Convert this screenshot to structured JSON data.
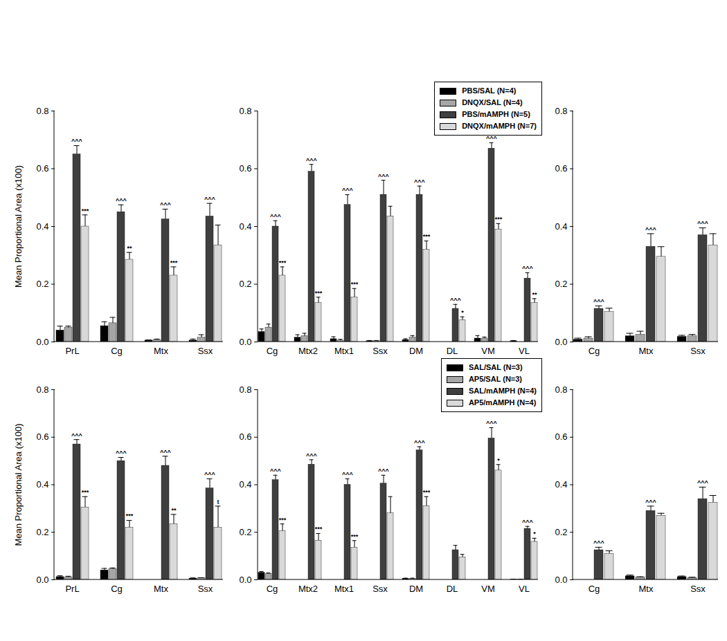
{
  "chart_data": [
    {
      "type": "bar",
      "y_label": "Mean Proportional Area (x100)",
      "categories": [
        "PrL",
        "Cg",
        "Mtx",
        "Ssx"
      ],
      "ylim": [
        0,
        0.8
      ],
      "yticks": [
        {
          "value": 0,
          "label": "0.0"
        },
        0.2,
        0.4,
        0.6,
        0.8
      ],
      "series": [
        {
          "name": "PBS/SAL (N=4)",
          "color": "#000000",
          "values": [
            0.04,
            0.055,
            0.005,
            0.005
          ],
          "errors": [
            0.015,
            0.015,
            0.002,
            0.005
          ],
          "annotations": [
            null,
            null,
            null,
            null
          ]
        },
        {
          "name": "DNQX/SAL (N=4)",
          "color": "#a6a6a6",
          "values": [
            0.05,
            0.065,
            0.007,
            0.015
          ],
          "errors": [
            0.005,
            0.02,
            0.003,
            0.01
          ],
          "annotations": [
            null,
            null,
            null,
            null
          ]
        },
        {
          "name": "PBS/mAMPH (N=5)",
          "color": "#3f3f3f",
          "values": [
            0.65,
            0.45,
            0.425,
            0.435
          ],
          "errors": [
            0.03,
            0.025,
            0.035,
            0.045
          ],
          "annotations": [
            "^^^",
            "^^^",
            "^^^",
            "^^^"
          ]
        },
        {
          "name": "DNQX/mAMPH (N=7)",
          "color": "#d9d9d9",
          "values": [
            0.4,
            0.285,
            0.23,
            0.335
          ],
          "errors": [
            0.04,
            0.025,
            0.03,
            0.07
          ],
          "annotations": [
            "***",
            "**",
            "***",
            null
          ]
        }
      ]
    },
    {
      "type": "bar",
      "legend": "top-right",
      "categories": [
        "Cg",
        "Mtx2",
        "Mtx1",
        "Ssx",
        "DM",
        "DL",
        "VM",
        "VL"
      ],
      "ylim": [
        0,
        0.8
      ],
      "yticks": [
        {
          "value": 0,
          "label": "0.0"
        },
        0.2,
        0.4,
        0.6,
        0.8
      ],
      "series": [
        {
          "name": "PBS/SAL (N=4)",
          "color": "#000000",
          "values": [
            0.035,
            0.015,
            0.01,
            0.003,
            0.007,
            0,
            0.012,
            0.003
          ],
          "errors": [
            0.01,
            0.01,
            0.008,
            0.002,
            0.004,
            0,
            0.01,
            0.002
          ],
          "annotations": [
            null,
            null,
            null,
            null,
            null,
            null,
            null,
            null
          ]
        },
        {
          "name": "DNQX/SAL (N=4)",
          "color": "#a6a6a6",
          "values": [
            0.05,
            0.02,
            0.005,
            0.003,
            0.015,
            0,
            0.012,
            0
          ],
          "errors": [
            0.012,
            0.01,
            0.004,
            0.002,
            0.007,
            0,
            0.005,
            0
          ],
          "annotations": [
            null,
            null,
            null,
            null,
            null,
            null,
            null,
            null
          ]
        },
        {
          "name": "PBS/mAMPH (N=5)",
          "color": "#3f3f3f",
          "values": [
            0.4,
            0.59,
            0.475,
            0.51,
            0.51,
            0.115,
            0.67,
            0.22
          ],
          "errors": [
            0.02,
            0.025,
            0.035,
            0.05,
            0.03,
            0.015,
            0.02,
            0.02
          ],
          "annotations": [
            "^^^",
            "^^^",
            "^^^",
            "^^^",
            "^^^",
            "^^^",
            "^^^",
            "^^^"
          ]
        },
        {
          "name": "DNQX/mAMPH (N=7)",
          "color": "#d9d9d9",
          "values": [
            0.23,
            0.135,
            0.155,
            0.435,
            0.32,
            0.075,
            0.39,
            0.135
          ],
          "errors": [
            0.03,
            0.02,
            0.03,
            0.035,
            0.03,
            0.012,
            0.02,
            0.015
          ],
          "annotations": [
            "***",
            "***",
            "***",
            null,
            "***",
            "*",
            "***",
            "**"
          ]
        }
      ]
    },
    {
      "type": "bar",
      "categories": [
        "Cg",
        "Mtx",
        "Ssx"
      ],
      "ylim": [
        0,
        0.8
      ],
      "yticks": [
        {
          "value": 0,
          "label": "0.0"
        },
        0.2,
        0.4,
        0.6,
        0.8
      ],
      "series": [
        {
          "name": "PBS/SAL (N=4)",
          "color": "#000000",
          "values": [
            0.008,
            0.02,
            0.018
          ],
          "errors": [
            0.005,
            0.01,
            0.005
          ],
          "annotations": [
            null,
            null,
            null
          ]
        },
        {
          "name": "DNQX/SAL (N=4)",
          "color": "#a6a6a6",
          "values": [
            0.012,
            0.025,
            0.02
          ],
          "errors": [
            0.006,
            0.012,
            0.006
          ],
          "annotations": [
            null,
            null,
            null
          ]
        },
        {
          "name": "PBS/mAMPH (N=5)",
          "color": "#3f3f3f",
          "values": [
            0.115,
            0.33,
            0.37
          ],
          "errors": [
            0.01,
            0.045,
            0.025
          ],
          "annotations": [
            "^^^",
            "^^^",
            "^^^"
          ]
        },
        {
          "name": "DNQX/mAMPH (N=7)",
          "color": "#d9d9d9",
          "values": [
            0.105,
            0.295,
            0.335
          ],
          "errors": [
            0.012,
            0.035,
            0.04
          ],
          "annotations": [
            null,
            null,
            null
          ]
        }
      ]
    },
    {
      "type": "bar",
      "y_label": "Mean Proportional Area (x100)",
      "categories": [
        "PrL",
        "Cg",
        "Mtx",
        "Ssx"
      ],
      "ylim": [
        0,
        0.8
      ],
      "yticks": [
        {
          "value": 0,
          "label": "0.0"
        },
        0.2,
        0.4,
        0.6,
        0.8
      ],
      "series": [
        {
          "name": "SAL/SAL (N=3)",
          "color": "#000000",
          "values": [
            0.012,
            0.04,
            0,
            0.005
          ],
          "errors": [
            0.005,
            0.008,
            0,
            0.003
          ],
          "annotations": [
            null,
            null,
            null,
            null
          ]
        },
        {
          "name": "AP5/SAL (N=3)",
          "color": "#a6a6a6",
          "values": [
            0.01,
            0.045,
            0,
            0.007
          ],
          "errors": [
            0.005,
            0.005,
            0,
            0.002
          ],
          "annotations": [
            null,
            null,
            null,
            null
          ]
        },
        {
          "name": "SAL/mAMPH (N=4)",
          "color": "#3f3f3f",
          "values": [
            0.57,
            0.5,
            0.48,
            0.385
          ],
          "errors": [
            0.02,
            0.015,
            0.04,
            0.04
          ],
          "annotations": [
            "^^^",
            "^^^",
            "^^^",
            "^^^"
          ]
        },
        {
          "name": "AP5/mAMPH (N=4)",
          "color": "#d9d9d9",
          "values": [
            0.305,
            0.22,
            0.235,
            0.22
          ],
          "errors": [
            0.045,
            0.03,
            0.04,
            0.09
          ],
          "annotations": [
            "***",
            "***",
            "**",
            "t"
          ]
        }
      ]
    },
    {
      "type": "bar",
      "legend": "top-right",
      "categories": [
        "Cg",
        "Mtx2",
        "Mtx1",
        "Ssx",
        "DM",
        "DL",
        "VM",
        "VL"
      ],
      "ylim": [
        0,
        0.8
      ],
      "yticks": [
        {
          "value": 0,
          "label": "0.0"
        },
        0.2,
        0.4,
        0.6,
        0.8
      ],
      "series": [
        {
          "name": "SAL/SAL (N=3)",
          "color": "#000000",
          "values": [
            0.03,
            0,
            0,
            0,
            0.005,
            0,
            0,
            0.002
          ],
          "errors": [
            0.005,
            0,
            0,
            0,
            0.002,
            0,
            0,
            0.001
          ],
          "annotations": [
            null,
            null,
            null,
            null,
            null,
            null,
            null,
            null
          ]
        },
        {
          "name": "AP5/SAL (N=3)",
          "color": "#a6a6a6",
          "values": [
            0.025,
            0,
            0,
            0,
            0.005,
            0,
            0,
            0.002
          ],
          "errors": [
            0.004,
            0,
            0,
            0,
            0.002,
            0,
            0,
            0.001
          ],
          "annotations": [
            null,
            null,
            null,
            null,
            null,
            null,
            null,
            null
          ]
        },
        {
          "name": "SAL/mAMPH (N=4)",
          "color": "#3f3f3f",
          "values": [
            0.42,
            0.485,
            0.4,
            0.405,
            0.545,
            0.125,
            0.595,
            0.215
          ],
          "errors": [
            0.02,
            0.02,
            0.025,
            0.035,
            0.015,
            0.02,
            0.045,
            0.01
          ],
          "annotations": [
            "^^^",
            "^^^",
            "^^^",
            "^^^",
            "^^^",
            null,
            "^^^",
            "^^^"
          ]
        },
        {
          "name": "AP5/mAMPH (N=4)",
          "color": "#d9d9d9",
          "values": [
            0.205,
            0.165,
            0.135,
            0.28,
            0.31,
            0.095,
            0.46,
            0.16
          ],
          "errors": [
            0.03,
            0.03,
            0.03,
            0.07,
            0.04,
            0.012,
            0.025,
            0.015
          ],
          "annotations": [
            "***",
            "***",
            "***",
            null,
            "***",
            null,
            "*",
            "*"
          ]
        }
      ]
    },
    {
      "type": "bar",
      "categories": [
        "Cg",
        "Mtx",
        "Ssx"
      ],
      "ylim": [
        0,
        0.8
      ],
      "yticks": [
        {
          "value": 0,
          "label": "0.0"
        },
        0.2,
        0.4,
        0.6,
        0.8
      ],
      "series": [
        {
          "name": "SAL/SAL (N=3)",
          "color": "#000000",
          "values": [
            0,
            0.015,
            0.012
          ],
          "errors": [
            0,
            0.005,
            0.004
          ],
          "annotations": [
            null,
            null,
            null
          ]
        },
        {
          "name": "AP5/SAL (N=3)",
          "color": "#a6a6a6",
          "values": [
            0,
            0.01,
            0.008
          ],
          "errors": [
            0,
            0.003,
            0.003
          ],
          "annotations": [
            null,
            null,
            null
          ]
        },
        {
          "name": "SAL/mAMPH (N=4)",
          "color": "#3f3f3f",
          "values": [
            0.125,
            0.29,
            0.34
          ],
          "errors": [
            0.012,
            0.02,
            0.05
          ],
          "annotations": [
            "^^^",
            "^^^",
            "^^^"
          ]
        },
        {
          "name": "AP5/mAMPH (N=4)",
          "color": "#d9d9d9",
          "values": [
            0.11,
            0.27,
            0.325
          ],
          "errors": [
            0.012,
            0.01,
            0.03
          ],
          "annotations": [
            null,
            null,
            null
          ]
        }
      ]
    }
  ]
}
